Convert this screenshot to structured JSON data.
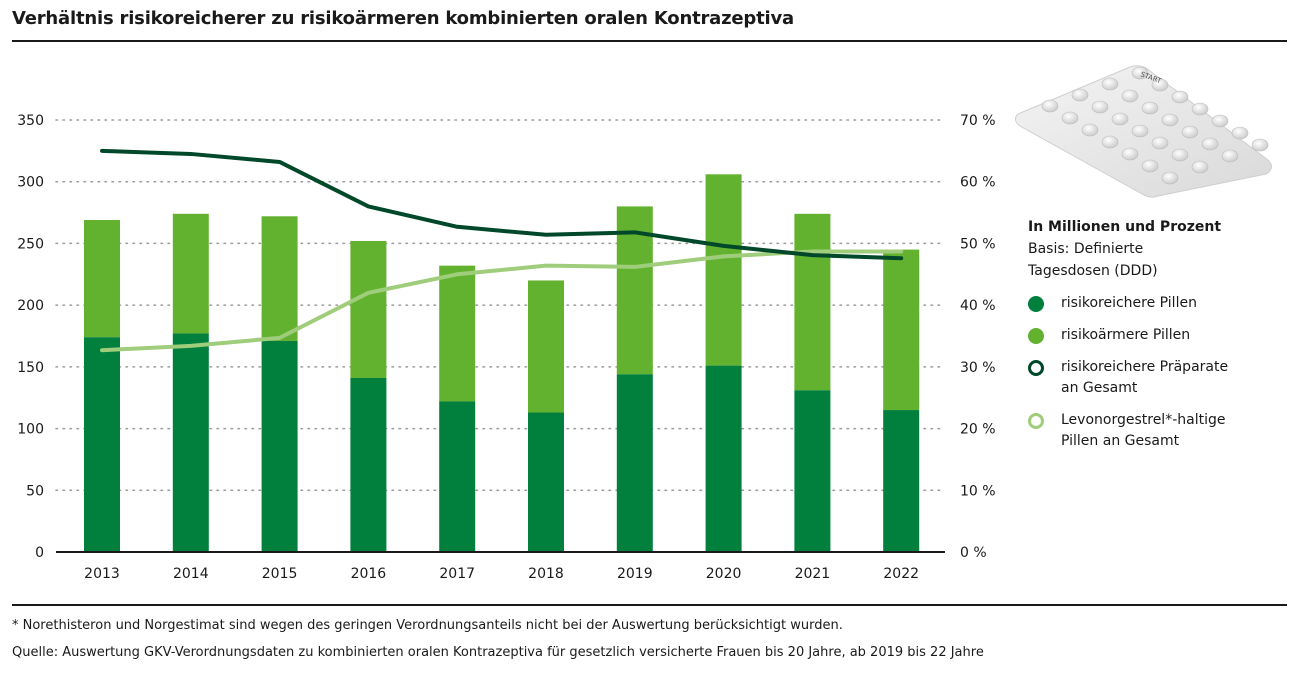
{
  "title": "Verhältnis risikoreicherer zu risikoärmeren kombinierten oralen Kontrazeptiva",
  "legend": {
    "heading": "In Millionen und Prozent",
    "basis": "Basis: Definierte Tagesdosen (DDD)",
    "items": [
      {
        "label": "risikoreichere Pillen",
        "color": "#007f3d",
        "style": "filled"
      },
      {
        "label": "risikoärmere Pillen",
        "color": "#63b22f",
        "style": "filled"
      },
      {
        "label": "risikoreichere Präparate\nan Gesamt",
        "color": "#00482a",
        "style": "outline"
      },
      {
        "label": "Levonorgestrel*-haltige\nPillen an Gesamt",
        "color": "#9fcd7c",
        "style": "outline"
      }
    ]
  },
  "illustration": {
    "name": "pill-blister-pack",
    "label": "START"
  },
  "footnotes": {
    "note": "* Norethisteron und Norgestimat sind wegen des geringen Verordnungsanteils nicht bei der Auswertung berücksichtigt wurden.",
    "source": "Quelle: Auswertung GKV-Verordnungsdaten zu kombinierten oralen Kontrazeptiva für gesetzlich versicherte Frauen bis 20 Jahre, ab 2019 bis 22 Jahre"
  },
  "chart_data": {
    "type": "bar",
    "subtype": "stacked bar with dual-axis lines",
    "title": "Verhältnis risikoreicherer zu risikoärmeren kombinierten oralen Kontrazeptiva",
    "categories": [
      "2013",
      "2014",
      "2015",
      "2016",
      "2017",
      "2018",
      "2019",
      "2020",
      "2021",
      "2022"
    ],
    "series": [
      {
        "name": "risikoreichere Pillen",
        "type": "bar",
        "axis": "left",
        "color": "#007f3d",
        "values": [
          174,
          177,
          171,
          141,
          122,
          113,
          144,
          151,
          131,
          115
        ]
      },
      {
        "name": "risikoärmere Pillen",
        "type": "bar",
        "axis": "left",
        "color": "#63b22f",
        "values": [
          95,
          97,
          101,
          111,
          110,
          107,
          136,
          155,
          143,
          130
        ]
      },
      {
        "name": "risikoreichere Präparate an Gesamt",
        "type": "line",
        "axis": "right",
        "color": "#00482a",
        "values": [
          65.0,
          64.5,
          63.2,
          56.0,
          52.7,
          51.4,
          51.8,
          49.6,
          48.1,
          47.6
        ]
      },
      {
        "name": "Levonorgestrel*-haltige Pillen an Gesamt",
        "type": "line",
        "axis": "right",
        "color": "#9fcd7c",
        "values": [
          32.7,
          33.4,
          34.7,
          42.0,
          45.0,
          46.4,
          46.2,
          47.9,
          48.7,
          48.7
        ]
      }
    ],
    "y_left": {
      "label": "In Millionen",
      "ylim": [
        0,
        350
      ],
      "ticks": [
        "0",
        "50",
        "100",
        "150",
        "200",
        "250",
        "300",
        "350"
      ],
      "tick_values": [
        0,
        50,
        100,
        150,
        200,
        250,
        300,
        350
      ]
    },
    "y_right": {
      "label": "Prozent",
      "ylim": [
        0,
        70
      ],
      "ticks": [
        "0 %",
        "10 %",
        "20 %",
        "30 %",
        "40 %",
        "50 %",
        "60 %",
        "70 %"
      ],
      "tick_values": [
        0,
        10,
        20,
        30,
        40,
        50,
        60,
        70
      ]
    },
    "xlabel": "",
    "grid": "dotted horizontal",
    "legend_position": "right"
  }
}
